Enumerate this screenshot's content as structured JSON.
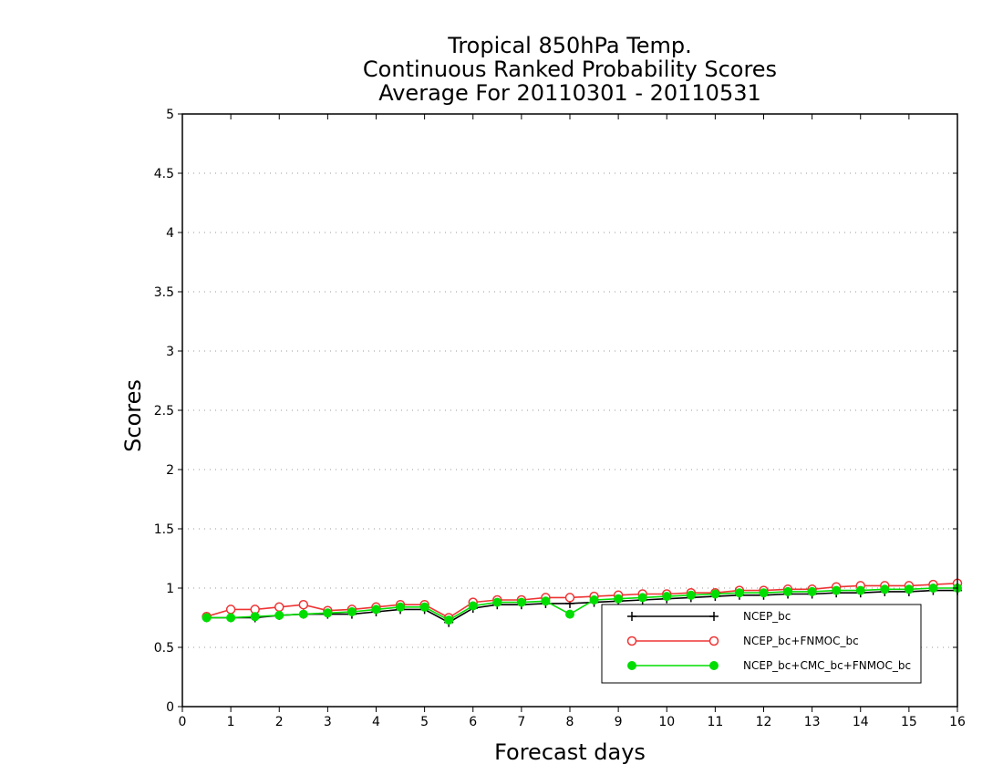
{
  "chart_data": {
    "type": "line",
    "title": [
      "Tropical 850hPa Temp.",
      "Continuous Ranked Probability Scores",
      "Average For 20110301 - 20110531"
    ],
    "xlabel": "Forecast days",
    "ylabel": "Scores",
    "xlim": [
      0,
      16
    ],
    "ylim": [
      0,
      5
    ],
    "xticks": [
      "0",
      "1",
      "2",
      "3",
      "4",
      "5",
      "6",
      "7",
      "8",
      "9",
      "10",
      "11",
      "12",
      "13",
      "14",
      "15",
      "16"
    ],
    "yticks": [
      "0",
      "0.5",
      "1",
      "1.5",
      "2",
      "2.5",
      "3",
      "3.5",
      "4",
      "4.5",
      "5"
    ],
    "grid": "horizontal dotted",
    "legend_position": "bottom-right",
    "x": [
      0.5,
      1,
      1.5,
      2,
      2.5,
      3,
      3.5,
      4,
      4.5,
      5,
      5.5,
      6,
      6.5,
      7,
      7.5,
      8,
      8.5,
      9,
      9.5,
      10,
      10.5,
      11,
      11.5,
      12,
      12.5,
      13,
      13.5,
      14,
      14.5,
      15,
      15.5,
      16
    ],
    "series": [
      {
        "name": "NCEP_bc",
        "color": "#000000",
        "marker": "plus",
        "values": [
          0.75,
          0.75,
          0.75,
          0.77,
          0.78,
          0.78,
          0.78,
          0.8,
          0.82,
          0.82,
          0.71,
          0.83,
          0.86,
          0.86,
          0.87,
          0.87,
          0.88,
          0.89,
          0.9,
          0.91,
          0.92,
          0.93,
          0.94,
          0.94,
          0.95,
          0.95,
          0.96,
          0.96,
          0.97,
          0.97,
          0.98,
          0.98
        ]
      },
      {
        "name": "NCEP_bc+FNMOC_bc",
        "color": "#ee3333",
        "marker": "open-circle",
        "values": [
          0.76,
          0.82,
          0.82,
          0.84,
          0.86,
          0.81,
          0.82,
          0.84,
          0.86,
          0.86,
          0.75,
          0.88,
          0.9,
          0.9,
          0.92,
          0.92,
          0.93,
          0.94,
          0.95,
          0.95,
          0.96,
          0.96,
          0.98,
          0.98,
          0.99,
          0.99,
          1.01,
          1.02,
          1.02,
          1.02,
          1.03,
          1.04
        ]
      },
      {
        "name": "NCEP_bc+CMC_bc+FNMOC_bc",
        "color": "#00dd00",
        "marker": "filled-circle",
        "values": [
          0.75,
          0.75,
          0.76,
          0.77,
          0.78,
          0.79,
          0.8,
          0.82,
          0.84,
          0.84,
          0.73,
          0.85,
          0.88,
          0.88,
          0.89,
          0.78,
          0.9,
          0.91,
          0.92,
          0.93,
          0.94,
          0.95,
          0.96,
          0.96,
          0.97,
          0.97,
          0.98,
          0.98,
          0.99,
          0.99,
          1.0,
          1.0
        ]
      }
    ]
  }
}
